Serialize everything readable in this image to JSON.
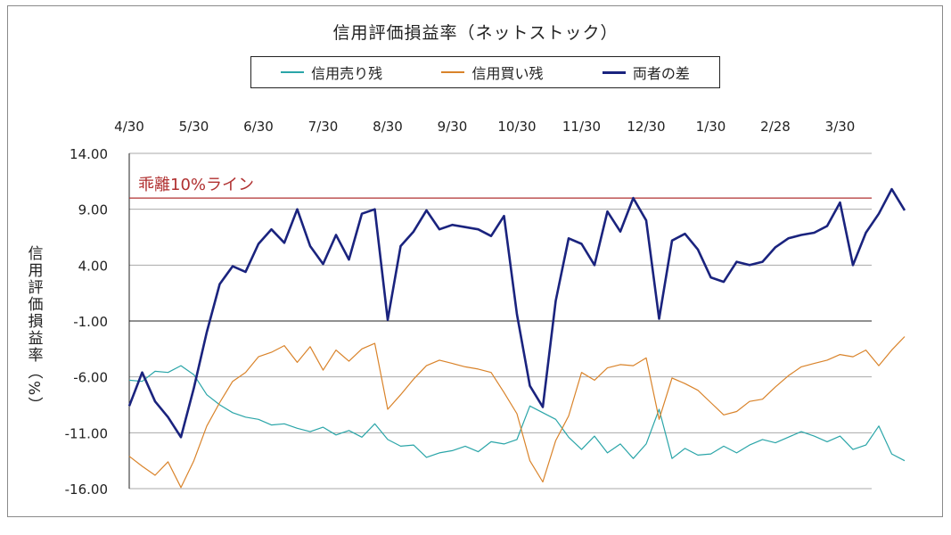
{
  "chart_data": {
    "type": "line",
    "title": "信用評価損益率（ネットストック）",
    "ylabel": "信用評価損益率（%）",
    "ylim": [
      -16,
      14
    ],
    "yticks": [
      "14.00",
      "9.00",
      "4.00",
      "-1.00",
      "-6.00",
      "-11.00",
      "-16.00"
    ],
    "ytick_values": [
      14,
      9,
      4,
      -1,
      -6,
      -11,
      -16
    ],
    "xticks": [
      "4/30",
      "5/30",
      "6/30",
      "7/30",
      "8/30",
      "9/30",
      "10/30",
      "11/30",
      "12/30",
      "1/30",
      "2/28",
      "3/30"
    ],
    "annotation": "乖離10%ライン",
    "reference_line": 10,
    "legend_position": "top",
    "grid": true,
    "colors": {
      "sell": "#2aa5a8",
      "buy": "#d9832a",
      "diff": "#1a237e",
      "ref": "#b03030"
    },
    "series": [
      {
        "name": "信用売り残",
        "x": [
          0,
          0.2,
          0.4,
          0.6,
          0.8,
          1.0,
          1.2,
          1.4,
          1.6,
          1.8,
          2.0,
          2.2,
          2.4,
          2.6,
          2.8,
          3.0,
          3.2,
          3.4,
          3.6,
          3.8,
          4.0,
          4.2,
          4.4,
          4.6,
          4.8,
          5.0,
          5.2,
          5.4,
          5.6,
          5.8,
          6.0,
          6.2,
          6.4,
          6.6,
          6.8,
          7.0,
          7.2,
          7.4,
          7.6,
          7.8,
          8.0,
          8.2,
          8.4,
          8.6,
          8.8,
          9.0,
          9.2,
          9.4,
          9.6,
          9.8,
          10.0,
          10.2,
          10.4,
          10.6,
          10.8,
          11.0,
          11.2,
          11.4,
          11.6,
          11.8,
          12.0
        ],
        "values": [
          -6.3,
          -6.4,
          -5.5,
          -5.6,
          -5.0,
          -5.8,
          -7.6,
          -8.5,
          -9.2,
          -9.6,
          -9.8,
          -10.3,
          -10.2,
          -10.6,
          -10.9,
          -10.5,
          -11.2,
          -10.8,
          -11.4,
          -10.2,
          -11.6,
          -12.2,
          -12.1,
          -13.2,
          -12.8,
          -12.6,
          -12.2,
          -12.7,
          -11.8,
          -12.0,
          -11.6,
          -8.6,
          -9.2,
          -9.8,
          -11.4,
          -12.5,
          -11.3,
          -12.8,
          -12.0,
          -13.3,
          -12.0,
          -8.9,
          -13.3,
          -12.4,
          -13.0,
          -12.9,
          -12.2,
          -12.8,
          -12.1,
          -11.6,
          -11.9,
          -11.4,
          -10.9,
          -11.3,
          -11.8,
          -11.3,
          -12.5,
          -12.1,
          -10.4,
          -12.9,
          -13.5
        ]
      },
      {
        "name": "信用買い残",
        "x": [
          0,
          0.2,
          0.4,
          0.6,
          0.8,
          1.0,
          1.2,
          1.4,
          1.6,
          1.8,
          2.0,
          2.2,
          2.4,
          2.6,
          2.8,
          3.0,
          3.2,
          3.4,
          3.6,
          3.8,
          4.0,
          4.2,
          4.4,
          4.6,
          4.8,
          5.0,
          5.2,
          5.4,
          5.6,
          5.8,
          6.0,
          6.2,
          6.4,
          6.6,
          6.8,
          7.0,
          7.2,
          7.4,
          7.6,
          7.8,
          8.0,
          8.2,
          8.4,
          8.6,
          8.8,
          9.0,
          9.2,
          9.4,
          9.6,
          9.8,
          10.0,
          10.2,
          10.4,
          10.6,
          10.8,
          11.0,
          11.2,
          11.4,
          11.6,
          11.8,
          12.0
        ],
        "values": [
          -13.1,
          -14.0,
          -14.8,
          -13.6,
          -15.9,
          -13.5,
          -10.4,
          -8.3,
          -6.4,
          -5.6,
          -4.2,
          -3.8,
          -3.2,
          -4.7,
          -3.3,
          -5.4,
          -3.6,
          -4.6,
          -3.5,
          -3.0,
          -8.9,
          -7.6,
          -6.2,
          -5.0,
          -4.5,
          -4.8,
          -5.1,
          -5.3,
          -5.6,
          -7.4,
          -9.3,
          -13.5,
          -15.4,
          -11.7,
          -9.5,
          -5.6,
          -6.3,
          -5.2,
          -4.9,
          -5.0,
          -4.3,
          -9.8,
          -6.1,
          -6.6,
          -7.2,
          -8.3,
          -9.4,
          -9.1,
          -8.2,
          -8.0,
          -6.9,
          -5.9,
          -5.1,
          -4.8,
          -4.5,
          -4.0,
          -4.2,
          -3.6,
          -5.0,
          -3.6,
          -2.4
        ]
      },
      {
        "name": "両者の差",
        "x": [
          0,
          0.2,
          0.4,
          0.6,
          0.8,
          1.0,
          1.2,
          1.4,
          1.6,
          1.8,
          2.0,
          2.2,
          2.4,
          2.6,
          2.8,
          3.0,
          3.2,
          3.4,
          3.6,
          3.8,
          4.0,
          4.2,
          4.4,
          4.6,
          4.8,
          5.0,
          5.2,
          5.4,
          5.6,
          5.8,
          6.0,
          6.2,
          6.4,
          6.6,
          6.8,
          7.0,
          7.2,
          7.4,
          7.6,
          7.8,
          8.0,
          8.2,
          8.4,
          8.6,
          8.8,
          9.0,
          9.2,
          9.4,
          9.6,
          9.8,
          10.0,
          10.2,
          10.4,
          10.6,
          10.8,
          11.0,
          11.2,
          11.4,
          11.6,
          11.8,
          12.0
        ],
        "values": [
          -8.6,
          -5.6,
          -8.2,
          -9.6,
          -11.4,
          -7.0,
          -2.0,
          2.3,
          3.9,
          3.4,
          5.9,
          7.2,
          6.0,
          9.0,
          5.7,
          4.1,
          6.7,
          4.5,
          8.6,
          9.0,
          -0.9,
          5.7,
          7.0,
          8.9,
          7.2,
          7.6,
          7.4,
          7.2,
          6.6,
          8.4,
          -0.4,
          -6.8,
          -8.7,
          0.8,
          6.4,
          5.9,
          4.0,
          8.8,
          7.0,
          10.0,
          8.0,
          -0.8,
          6.2,
          6.8,
          5.4,
          2.9,
          2.5,
          4.3,
          4.0,
          4.3,
          5.6,
          6.4,
          6.7,
          6.9,
          7.5,
          9.6,
          4.0,
          6.9,
          8.6,
          10.8,
          8.9
        ]
      }
    ]
  }
}
